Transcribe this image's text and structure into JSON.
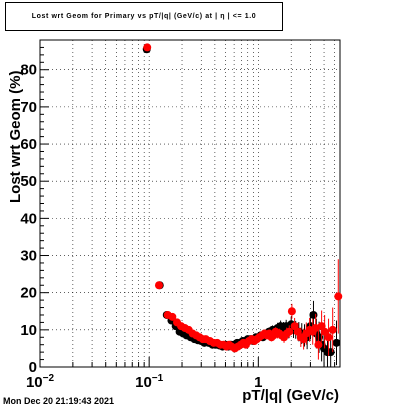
{
  "title": "Lost wrt Geom for Primary vs pT/|q| (GeV/c) at | η | <= 1.0",
  "timestamp": "Mon Dec 20 21:19:43 2021",
  "chart_data": {
    "type": "scatter",
    "title": "Lost wrt Geom for Primary vs pT/|q| (GeV/c) at | η | <= 1.0",
    "xlabel": "pT/|q| (GeV/c)",
    "ylabel": "Lost wrt Geom (%)",
    "xscale": "log",
    "xlim": [
      0.01,
      5.6
    ],
    "ylim": [
      0,
      88
    ],
    "grid": true,
    "legend": "none",
    "x_ticks": [
      {
        "value": 0.01,
        "base": "10",
        "exp": "−2"
      },
      {
        "value": 0.1,
        "base": "10",
        "exp": "−1"
      },
      {
        "value": 1,
        "base": "1",
        "exp": ""
      }
    ],
    "y_ticks": [
      "0",
      "10",
      "20",
      "30",
      "40",
      "50",
      "60",
      "70",
      "80"
    ],
    "series": [
      {
        "color": "#000000",
        "marker": "circle",
        "x": [
          0.095,
          0.125,
          0.145,
          0.16,
          0.175,
          0.19,
          0.205,
          0.22,
          0.24,
          0.26,
          0.28,
          0.3,
          0.32,
          0.35,
          0.38,
          0.41,
          0.44,
          0.47,
          0.5,
          0.53,
          0.56,
          0.6,
          0.64,
          0.68,
          0.72,
          0.76,
          0.8,
          0.85,
          0.9,
          0.95,
          1.0,
          1.05,
          1.1,
          1.15,
          1.2,
          1.25,
          1.3,
          1.35,
          1.4,
          1.45,
          1.5,
          1.55,
          1.6,
          1.7,
          1.8,
          1.9,
          2.0,
          2.1,
          2.2,
          2.35,
          2.5,
          2.65,
          2.8,
          3.0,
          3.2,
          3.4,
          3.6,
          3.8,
          4.0,
          4.3,
          4.6,
          5.2
        ],
        "y": [
          85.5,
          22,
          14,
          12.5,
          11,
          9.5,
          9,
          8.5,
          8,
          7.5,
          7.2,
          7,
          6.5,
          6.5,
          6,
          6,
          5.8,
          5.5,
          6,
          5.5,
          6,
          6,
          6.5,
          6.5,
          7,
          7,
          7.5,
          7.5,
          7,
          8,
          8,
          8.5,
          8,
          9,
          9,
          9.5,
          9,
          10,
          9.5,
          10,
          10.5,
          10,
          11,
          10.5,
          11,
          9.5,
          11.5,
          10,
          10,
          9.5,
          9,
          8.5,
          8,
          11,
          14,
          9,
          8,
          6,
          5,
          4,
          4,
          6.5
        ],
        "err": [
          0.8,
          0.8,
          0.8,
          0.7,
          0.7,
          0.7,
          0.7,
          0.6,
          0.6,
          0.6,
          0.6,
          0.6,
          0.6,
          0.6,
          0.6,
          0.6,
          0.6,
          0.6,
          0.6,
          0.6,
          0.6,
          0.6,
          0.7,
          0.7,
          0.7,
          0.7,
          0.8,
          0.8,
          0.8,
          0.9,
          0.9,
          1,
          1,
          1,
          1.1,
          1.1,
          1.2,
          1.2,
          1.3,
          1.3,
          1.4,
          1.4,
          1.5,
          1.6,
          1.7,
          1.8,
          2,
          2.2,
          2.4,
          2.6,
          2.8,
          3,
          3.2,
          3.5,
          3.8,
          4,
          4.2,
          4.5,
          5,
          5,
          5,
          6
        ]
      },
      {
        "color": "#ff0000",
        "marker": "circle",
        "x": [
          0.096,
          0.123,
          0.148,
          0.163,
          0.18,
          0.196,
          0.212,
          0.23,
          0.25,
          0.27,
          0.29,
          0.31,
          0.33,
          0.36,
          0.39,
          0.42,
          0.45,
          0.48,
          0.51,
          0.54,
          0.57,
          0.61,
          0.65,
          0.69,
          0.73,
          0.77,
          0.82,
          0.87,
          0.92,
          0.97,
          1.02,
          1.08,
          1.14,
          1.2,
          1.26,
          1.32,
          1.38,
          1.44,
          1.5,
          1.56,
          1.63,
          1.72,
          1.82,
          1.92,
          2.03,
          2.15,
          2.3,
          2.45,
          2.6,
          2.75,
          2.95,
          3.15,
          3.35,
          3.55,
          3.8,
          4.05,
          4.4,
          4.8,
          5.4
        ],
        "y": [
          86,
          22,
          14,
          13.5,
          12,
          11,
          10.5,
          10,
          9,
          8.5,
          8,
          7.5,
          7.5,
          7,
          6.5,
          6.5,
          6,
          6,
          5.5,
          6,
          5.5,
          5,
          5.5,
          6,
          6.5,
          6,
          7,
          7.5,
          7,
          7.5,
          8,
          8.5,
          9,
          8.5,
          9,
          8,
          8.5,
          9.5,
          9,
          9,
          8.5,
          8,
          9,
          9.5,
          15,
          11,
          9.5,
          8,
          7.5,
          9,
          10,
          9.5,
          10.5,
          6,
          11,
          9.5,
          8,
          10,
          19
        ],
        "err": [
          0.8,
          0.8,
          0.8,
          0.7,
          0.7,
          0.7,
          0.7,
          0.6,
          0.6,
          0.6,
          0.6,
          0.6,
          0.6,
          0.6,
          0.6,
          0.6,
          0.6,
          0.6,
          0.6,
          0.6,
          0.6,
          0.6,
          0.7,
          0.7,
          0.7,
          0.7,
          0.8,
          0.8,
          0.8,
          0.9,
          0.9,
          1,
          1,
          1,
          1.1,
          1.1,
          1.2,
          1.2,
          1.3,
          1.3,
          1.4,
          1.5,
          1.6,
          1.7,
          2,
          2.2,
          2.4,
          2.6,
          2.8,
          3,
          3.2,
          3.5,
          3.8,
          4,
          4.2,
          4.5,
          5,
          6,
          10
        ]
      }
    ]
  }
}
